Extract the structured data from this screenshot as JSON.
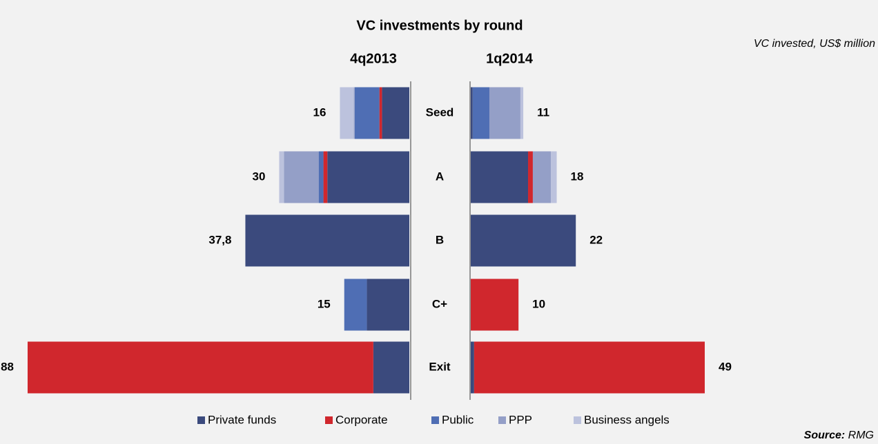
{
  "chart_data": {
    "type": "butterfly_bar",
    "title": "VC investments by round",
    "subtitle": "VC invested, US$ million",
    "source_label": "Source:",
    "source": "RMG",
    "categories": [
      "Seed",
      "A",
      "B",
      "C+",
      "Exit"
    ],
    "series": [
      {
        "name": "Private funds",
        "color": "#3b4a7d"
      },
      {
        "name": "Corporate",
        "color": "#d0272d"
      },
      {
        "name": "Public",
        "color": "#4f6eb4"
      },
      {
        "name": "PPP",
        "color": "#949fc7"
      },
      {
        "name": "Business angels",
        "color": "#bcc2dd"
      }
    ],
    "panels": [
      {
        "title": "4q2013",
        "xlim": [
          0,
          88
        ],
        "values": [
          16,
          30,
          37.8,
          15,
          88
        ],
        "value_labels": [
          "16",
          "30",
          "37,8",
          "15",
          "88"
        ],
        "segments": [
          {
            "values": [
              6.3,
              18.9,
              37.8,
              9.8,
              8.3
            ]
          },
          {
            "values": [
              0.6,
              0.9,
              0,
              0,
              79.7
            ]
          },
          {
            "values": [
              5.7,
              1.1,
              0,
              5.2,
              0
            ]
          },
          {
            "values": [
              0.2,
              8,
              0,
              0,
              0
            ]
          },
          {
            "values": [
              3.2,
              1.1,
              0,
              0,
              0
            ]
          }
        ]
      },
      {
        "title": "1q2014",
        "xlim": [
          0,
          49
        ],
        "values": [
          11,
          18,
          22,
          10,
          49
        ],
        "segments": [
          {
            "values": [
              0.4,
              12,
              22,
              0,
              0.7
            ]
          },
          {
            "values": [
              0,
              1,
              0,
              10,
              48.3
            ]
          },
          {
            "values": [
              3.5,
              0,
              0,
              0,
              0
            ]
          },
          {
            "values": [
              6.5,
              3.8,
              0,
              0,
              0
            ]
          },
          {
            "values": [
              0.6,
              1.2,
              0,
              0,
              0
            ]
          }
        ]
      }
    ]
  }
}
